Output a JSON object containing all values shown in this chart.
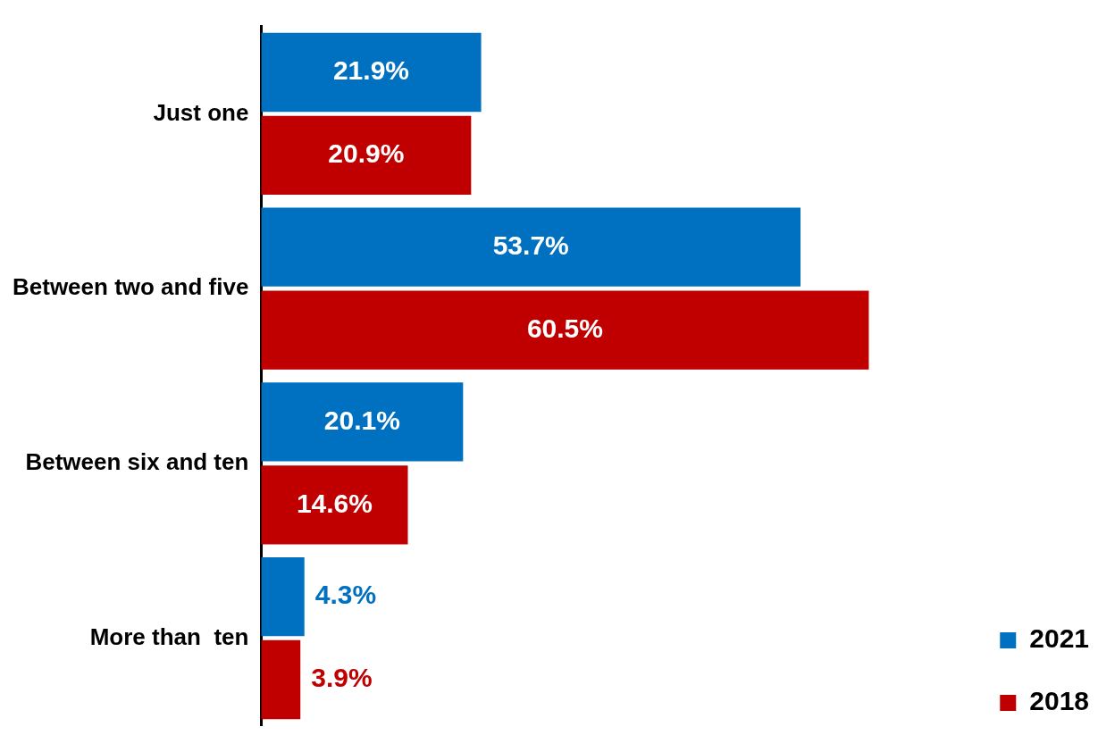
{
  "chart_data": {
    "type": "bar",
    "orientation": "horizontal",
    "categories": [
      "Just one",
      "Between two and five",
      "Between six and ten",
      "More than  ten"
    ],
    "series": [
      {
        "name": "2021",
        "color": "#0070c0",
        "values": [
          21.9,
          53.7,
          20.1,
          4.3
        ],
        "value_labels": [
          "21.9%",
          "53.7%",
          "20.1%",
          "4.3%"
        ]
      },
      {
        "name": "2018",
        "color": "#c00000",
        "values": [
          20.9,
          60.5,
          14.6,
          3.9
        ],
        "value_labels": [
          "20.9%",
          "60.5%",
          "14.6%",
          "3.9%"
        ]
      }
    ],
    "legend": "bottom right",
    "grid": false
  }
}
